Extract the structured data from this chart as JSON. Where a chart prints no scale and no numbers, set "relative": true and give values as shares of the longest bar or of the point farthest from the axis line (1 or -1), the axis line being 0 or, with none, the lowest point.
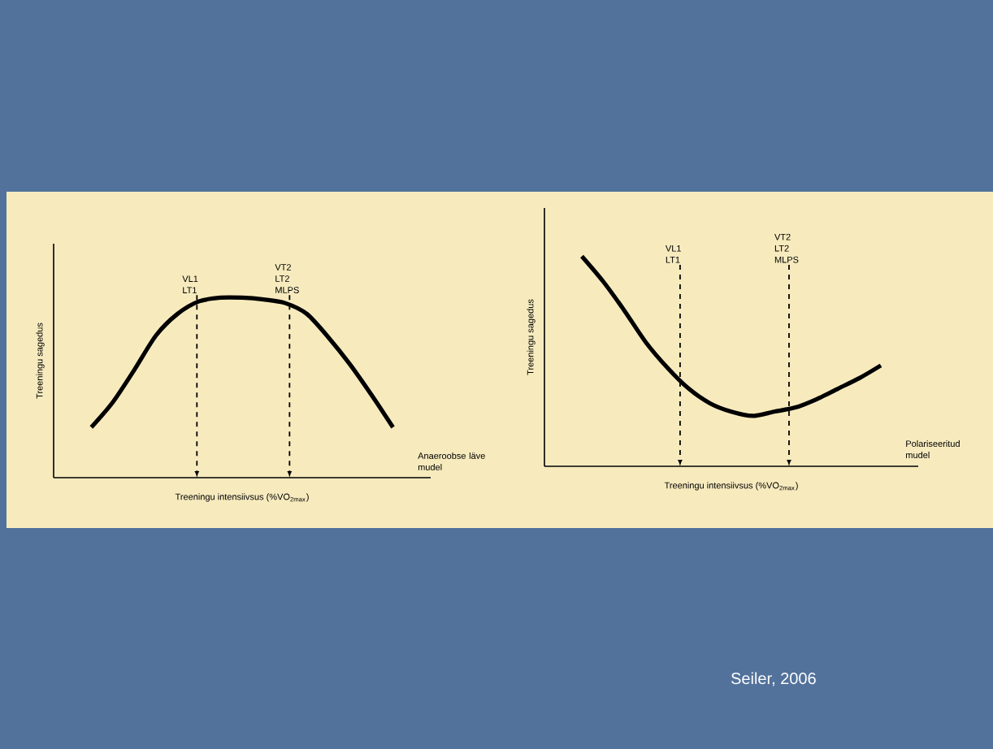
{
  "chart_data": [
    {
      "type": "line",
      "relative": true,
      "xlabel": "Treeningu intensiivsus (%VO$_{2max}$)",
      "ylabel": "Treeningu sagedus",
      "marker": "none",
      "line_style": "solid",
      "categories": [
        null,
        null,
        null,
        null,
        null,
        null,
        null,
        null,
        null,
        null,
        null,
        null,
        null,
        null,
        null
      ],
      "series": [
        {
          "color": "#000000",
          "values": [
            0.28,
            0.42,
            0.6,
            0.79,
            0.91,
            0.98,
            1.0,
            1.0,
            0.99,
            0.97,
            0.91,
            0.78,
            0.63,
            0.46,
            0.28
          ]
        }
      ],
      "annotations": [
        "VL1 LT1",
        "VT2 LT2 MLPS",
        "Anaeroobse läve mudel"
      ]
    },
    {
      "type": "line",
      "relative": true,
      "xlabel": "Treeningu intensiivsus (%VO$_{2max}$)",
      "ylabel": "Treeningu sagedus",
      "marker": "none",
      "line_style": "solid",
      "categories": [
        null,
        null,
        null,
        null,
        null,
        null,
        null,
        null,
        null,
        null,
        null,
        null,
        null,
        null,
        null
      ],
      "series": [
        {
          "color": "#000000",
          "values": [
            1.0,
            0.88,
            0.74,
            0.59,
            0.47,
            0.37,
            0.3,
            0.26,
            0.24,
            0.26,
            0.28,
            0.32,
            0.37,
            0.42,
            0.48
          ]
        }
      ],
      "annotations": [
        "VL1 LT1",
        "VT2 LT2 MLPS",
        "Polariseeritud mudel",
        "Seiler, 2006"
      ]
    }
  ]
}
